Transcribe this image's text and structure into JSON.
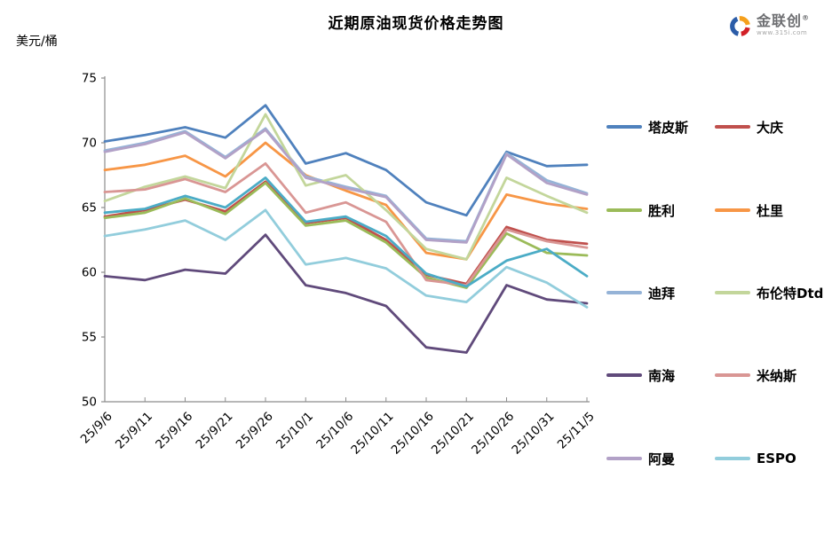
{
  "title": "近期原油现货价格走势图",
  "y_axis_unit_label": "美元/桶",
  "logo": {
    "brand": "金联创",
    "reg": "®",
    "url_text": "www.315i.com"
  },
  "legend": {
    "position": "right",
    "items": [
      {
        "label": "塔皮斯",
        "color": "#4F81BD"
      },
      {
        "label": "大庆",
        "color": "#C0504D"
      },
      {
        "label": "胜利",
        "color": "#9BBB59"
      },
      {
        "label": "杜里",
        "color": "#F79646"
      },
      {
        "label": "迪拜",
        "color": "#95B3D7"
      },
      {
        "label": "布伦特Dtd",
        "color": "#C3D69B"
      },
      {
        "label": "南海",
        "color": "#604A7B"
      },
      {
        "label": "米纳斯",
        "color": "#D99694"
      },
      {
        "label": "阿曼",
        "color": "#B2A1C7"
      },
      {
        "label": "ESPO",
        "color": "#92CDDC"
      }
    ]
  },
  "chart_data": {
    "type": "line",
    "title": "近期原油现货价格走势图",
    "ylabel": "美元/桶",
    "xlabel": "",
    "ylim": [
      50,
      75
    ],
    "y_ticks": [
      75,
      70,
      65,
      60,
      55,
      50
    ],
    "grid": false,
    "legend_position": "right",
    "x_tick_rotation_deg": 45,
    "axis_color": "#8c8c8c",
    "categories": [
      "25/9/6",
      "25/9/11",
      "25/9/16",
      "25/9/21",
      "25/9/26",
      "25/10/1",
      "25/10/6",
      "25/10/11",
      "25/10/16",
      "25/10/21",
      "25/10/26",
      "25/10/31",
      "25/11/5"
    ],
    "series": [
      {
        "label": "塔皮斯",
        "color": "#4F81BD",
        "in_legend": true,
        "values": [
          70.1,
          70.6,
          71.2,
          70.4,
          72.9,
          68.4,
          69.2,
          67.9,
          65.4,
          64.4,
          69.3,
          68.2,
          68.3
        ]
      },
      {
        "label": "大庆",
        "color": "#C0504D",
        "in_legend": true,
        "values": [
          64.3,
          64.8,
          65.6,
          64.7,
          67.0,
          63.8,
          64.2,
          62.5,
          59.8,
          59.1,
          63.5,
          62.5,
          62.2
        ]
      },
      {
        "label": "胜利",
        "color": "#9BBB59",
        "in_legend": true,
        "values": [
          64.2,
          64.6,
          65.7,
          64.5,
          66.9,
          63.6,
          64.0,
          62.3,
          59.6,
          58.8,
          63.0,
          61.5,
          61.3
        ]
      },
      {
        "label": "杜里",
        "color": "#F79646",
        "in_legend": true,
        "values": [
          67.9,
          68.3,
          69.0,
          67.4,
          70.0,
          67.5,
          66.3,
          65.2,
          61.5,
          61.0,
          66.0,
          65.3,
          64.9
        ]
      },
      {
        "label": "迪拜",
        "color": "#95B3D7",
        "in_legend": true,
        "values": [
          69.4,
          70.0,
          70.9,
          68.9,
          71.1,
          67.4,
          66.6,
          65.9,
          62.6,
          62.4,
          69.2,
          67.1,
          66.1
        ]
      },
      {
        "label": "布伦特Dtd",
        "color": "#C3D69B",
        "in_legend": true,
        "values": [
          65.5,
          66.6,
          67.4,
          66.5,
          72.2,
          66.7,
          67.5,
          64.8,
          61.8,
          61.0,
          67.3,
          65.9,
          64.6
        ]
      },
      {
        "label": "南海",
        "color": "#604A7B",
        "in_legend": true,
        "values": [
          59.7,
          59.4,
          60.2,
          59.9,
          62.9,
          59.0,
          58.4,
          57.4,
          54.2,
          53.8,
          59.0,
          57.9,
          57.6
        ]
      },
      {
        "label": "米纳斯",
        "color": "#D99694",
        "in_legend": true,
        "values": [
          66.2,
          66.4,
          67.2,
          66.2,
          68.4,
          64.6,
          65.4,
          63.9,
          59.4,
          59.0,
          63.3,
          62.4,
          61.9
        ]
      },
      {
        "label": "阿曼",
        "color": "#B2A1C7",
        "in_legend": true,
        "values": [
          69.3,
          69.9,
          70.8,
          68.8,
          71.0,
          67.3,
          66.5,
          65.8,
          62.5,
          62.3,
          69.1,
          66.9,
          66.0
        ]
      },
      {
        "label": "ESPO",
        "color": "#92CDDC",
        "in_legend": true,
        "values": [
          62.8,
          63.3,
          64.0,
          62.5,
          64.8,
          60.6,
          61.1,
          60.3,
          58.2,
          57.7,
          60.4,
          59.2,
          57.3
        ]
      },
      {
        "label": "",
        "color": "#4BACC6",
        "in_legend": false,
        "values": [
          64.6,
          64.9,
          65.9,
          65.0,
          67.3,
          63.9,
          64.3,
          62.8,
          59.9,
          58.9,
          60.9,
          61.8,
          59.7
        ]
      }
    ]
  }
}
